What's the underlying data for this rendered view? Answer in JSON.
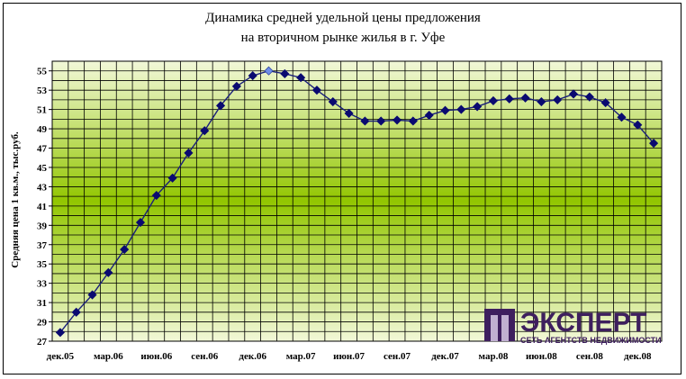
{
  "chart_data": {
    "type": "line",
    "title_lines": [
      "Динамика средней удельной цены предложения",
      "на вторичном рынке жилья в г. Уфе"
    ],
    "xlabel": "",
    "ylabel": "Средняя цена 1 кв.м., тыс.руб.",
    "ylim": [
      27,
      56
    ],
    "y_ticks": [
      27,
      29,
      31,
      33,
      35,
      37,
      39,
      41,
      43,
      45,
      47,
      49,
      51,
      53,
      55
    ],
    "x_tick_labels": [
      "дек.05",
      "мар.06",
      "июн.06",
      "сен.06",
      "дек.06",
      "мар.07",
      "июн.07",
      "сен.07",
      "дек.07",
      "мар.08",
      "июн.08",
      "сен.08",
      "дек.08"
    ],
    "grid": true,
    "highlight_index": 13,
    "series": [
      {
        "values": [
          27.9,
          30.0,
          31.8,
          34.1,
          36.5,
          39.3,
          42.1,
          43.9,
          46.5,
          48.8,
          51.4,
          53.4,
          54.5,
          55.0,
          54.7,
          54.3,
          53.0,
          51.8,
          50.6,
          49.8,
          49.8,
          49.9,
          49.8,
          50.4,
          50.9,
          51.0,
          51.3,
          51.9,
          52.1,
          52.2,
          51.8,
          52.0,
          52.6,
          52.3,
          51.7,
          50.2,
          49.4,
          47.5
        ]
      }
    ],
    "colors": {
      "line": "#1a1f7a",
      "marker": "#0a0a70",
      "highlight": "#6f8fe8",
      "grid": "#000000",
      "bg_edge": "#eef6cc",
      "bg_mid": "#8fc400"
    }
  },
  "logo": {
    "name": "ЭКСПЕРТ",
    "tagline": "СЕТЬ АГЕНТСТВ НЕДВИЖИМОСТИ",
    "color": "#3e1f5e"
  }
}
